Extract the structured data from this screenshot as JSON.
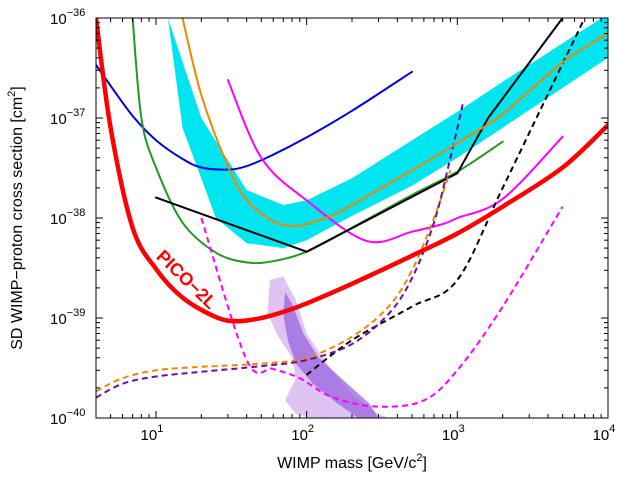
{
  "chart_data": {
    "type": "line",
    "xlabel": "WIMP mass [GeV/c²]",
    "ylabel": "SD WIMP−proton cross section [cm²]",
    "xscale": "log",
    "yscale": "log",
    "xlim": [
      4,
      10000
    ],
    "ylim": [
      1e-40,
      1e-36
    ],
    "grid": false,
    "x_ticks": [
      {
        "value": 10,
        "base": "10",
        "exp": "1"
      },
      {
        "value": 100,
        "base": "10",
        "exp": "2"
      },
      {
        "value": 1000,
        "base": "10",
        "exp": "3"
      },
      {
        "value": 10000,
        "base": "10",
        "exp": "4"
      }
    ],
    "y_ticks": [
      {
        "value": 1e-40,
        "base": "10",
        "exp": "−40"
      },
      {
        "value": 1e-39,
        "base": "10",
        "exp": "−39"
      },
      {
        "value": 1e-38,
        "base": "10",
        "exp": "−38"
      },
      {
        "value": 1e-37,
        "base": "10",
        "exp": "−37"
      },
      {
        "value": 1e-36,
        "base": "10",
        "exp": "−36"
      }
    ],
    "annotations": [
      {
        "text": "PICO−2L",
        "x": 15,
        "y": 2.2e-39,
        "color": "#ff0000",
        "rotation": 44
      }
    ],
    "regions": [
      {
        "color": "#d9b8f2",
        "opacity": 0.85,
        "points": [
          [
            57,
            2.4e-39
          ],
          [
            70,
            2.6e-39
          ],
          [
            85,
            1.5e-39
          ],
          [
            100,
            7e-40
          ],
          [
            140,
            3.3e-40
          ],
          [
            200,
            1.7e-40
          ],
          [
            300,
            1.1e-40
          ],
          [
            420,
            9e-41
          ],
          [
            330,
            8.5e-41
          ],
          [
            200,
            9e-41
          ],
          [
            120,
            9.5e-41
          ],
          [
            85,
            1.1e-40
          ],
          [
            72,
            1.5e-40
          ],
          [
            85,
            2.5e-40
          ],
          [
            80,
            4e-40
          ],
          [
            65,
            6.5e-40
          ],
          [
            55,
            1.1e-39
          ]
        ]
      },
      {
        "color": "#9966dd",
        "opacity": 0.75,
        "points": [
          [
            72,
            1.8e-39
          ],
          [
            80,
            1.4e-39
          ],
          [
            95,
            7e-40
          ],
          [
            120,
            4e-40
          ],
          [
            180,
            2.3e-40
          ],
          [
            260,
            1.4e-40
          ],
          [
            300,
            1e-40
          ],
          [
            220,
            1e-40
          ],
          [
            160,
            1.4e-40
          ],
          [
            110,
            2.2e-40
          ],
          [
            85,
            3.5e-40
          ],
          [
            75,
            6e-40
          ],
          [
            70,
            1.1e-39
          ]
        ]
      }
    ],
    "bands": [
      {
        "color": "#00e5f0",
        "upper": [
          [
            12,
            1e-36
          ],
          [
            20,
            1e-37
          ],
          [
            40,
            1.9e-38
          ],
          [
            70,
            1.35e-38
          ],
          [
            100,
            1.5e-38
          ],
          [
            200,
            2.5e-38
          ],
          [
            500,
            6e-38
          ],
          [
            1000,
            1.15e-37
          ],
          [
            2000,
            2.3e-37
          ],
          [
            5000,
            5.6e-37
          ],
          [
            10000,
            1.1e-36
          ]
        ],
        "lower": [
          [
            10000,
            4e-37
          ],
          [
            5000,
            2e-37
          ],
          [
            2000,
            8e-38
          ],
          [
            1000,
            4e-38
          ],
          [
            500,
            2.1e-38
          ],
          [
            200,
            1.05e-38
          ],
          [
            100,
            6e-39
          ],
          [
            70,
            5e-39
          ],
          [
            40,
            5.6e-39
          ],
          [
            25,
            1e-38
          ],
          [
            15,
            8e-38
          ],
          [
            12,
            1e-36
          ]
        ]
      }
    ],
    "series": [
      {
        "color": "#ff0000",
        "width": 4.5,
        "dash": "",
        "points": [
          [
            4,
            1e-36
          ],
          [
            5,
            8e-38
          ],
          [
            7,
            8e-39
          ],
          [
            10,
            3.1e-39
          ],
          [
            15,
            1.6e-39
          ],
          [
            25,
            1.02e-39
          ],
          [
            35,
            9.3e-40
          ],
          [
            50,
            1e-39
          ],
          [
            70,
            1.15e-39
          ],
          [
            100,
            1.4e-39
          ],
          [
            200,
            2.2e-39
          ],
          [
            500,
            4.2e-39
          ],
          [
            1000,
            7e-39
          ],
          [
            2000,
            1.3e-38
          ],
          [
            5000,
            3.2e-38
          ],
          [
            10000,
            8.5e-38
          ]
        ]
      },
      {
        "color": "#0000dd",
        "width": 2,
        "dash": "",
        "points": [
          [
            4,
            3.4e-37
          ],
          [
            5,
            2.1e-37
          ],
          [
            7,
            1.05e-37
          ],
          [
            10,
            6e-38
          ],
          [
            15,
            3.9e-38
          ],
          [
            20,
            3.2e-38
          ],
          [
            30,
            3.05e-38
          ],
          [
            40,
            3.3e-38
          ],
          [
            60,
            4.3e-38
          ],
          [
            100,
            6.4e-38
          ],
          [
            200,
            1.18e-37
          ],
          [
            500,
            2.9e-37
          ]
        ]
      },
      {
        "color": "#229922",
        "width": 2,
        "dash": "",
        "points": [
          [
            7,
            1e-36
          ],
          [
            8,
            1e-37
          ],
          [
            10,
            3.2e-38
          ],
          [
            15,
            9e-39
          ],
          [
            25,
            4.5e-39
          ],
          [
            40,
            3.6e-39
          ],
          [
            60,
            3.7e-39
          ],
          [
            100,
            4.6e-39
          ],
          [
            200,
            8e-39
          ],
          [
            500,
            1.7e-38
          ],
          [
            1000,
            2.9e-38
          ],
          [
            2000,
            5.8e-38
          ]
        ]
      },
      {
        "color": "#ee8800",
        "width": 2,
        "dash": "",
        "points": [
          [
            15,
            1e-36
          ],
          [
            20,
            1.7e-37
          ],
          [
            30,
            3.3e-38
          ],
          [
            40,
            1.5e-38
          ],
          [
            60,
            9.3e-39
          ],
          [
            80,
            8.3e-39
          ],
          [
            100,
            8.7e-39
          ],
          [
            150,
            1.07e-38
          ],
          [
            200,
            1.35e-38
          ],
          [
            500,
            3e-38
          ],
          [
            1000,
            5.6e-38
          ],
          [
            2000,
            1.1e-37
          ],
          [
            5000,
            3.6e-37
          ],
          [
            10000,
            7e-37
          ]
        ]
      },
      {
        "color": "#ff00ff",
        "width": 2,
        "dash": "",
        "points": [
          [
            30,
            2.4e-37
          ],
          [
            50,
            4e-38
          ],
          [
            100,
            1.5e-38
          ],
          [
            250,
            5.9e-39
          ],
          [
            500,
            7.3e-39
          ],
          [
            800,
            8.7e-39
          ],
          [
            1000,
            1e-38
          ],
          [
            2000,
            1.55e-38
          ],
          [
            5000,
            6.5e-38
          ]
        ]
      },
      {
        "color": "#000000",
        "width": 2,
        "dash": "",
        "points": [
          [
            10,
            1.6e-38
          ],
          [
            100,
            4.6e-39
          ],
          [
            1000,
            2.8e-38
          ],
          [
            1600,
            1e-37
          ],
          [
            5000,
            1e-36
          ]
        ]
      },
      {
        "color": "#000000",
        "width": 2,
        "dash": "6,4",
        "points": [
          [
            100,
            2.7e-40
          ],
          [
            200,
            6e-40
          ],
          [
            500,
            1.3e-39
          ],
          [
            1000,
            2.4e-39
          ],
          [
            2000,
            2e-38
          ],
          [
            5000,
            3.5e-37
          ],
          [
            7000,
            1e-36
          ]
        ]
      },
      {
        "color": "#ff00ff",
        "width": 2,
        "dash": "6,4",
        "points": [
          [
            20,
            1e-38
          ],
          [
            40,
            3.8e-40
          ],
          [
            60,
            3.1e-40
          ],
          [
            90,
            2.5e-40
          ],
          [
            150,
            1.6e-40
          ],
          [
            300,
            1.3e-40
          ],
          [
            600,
            1.5e-40
          ],
          [
            1000,
            3e-40
          ],
          [
            2000,
            1.3e-39
          ],
          [
            5000,
            1.3e-38
          ]
        ]
      },
      {
        "color": "#ee8800",
        "width": 2,
        "dash": "6,4",
        "points": [
          [
            4,
            1.85e-40
          ],
          [
            6,
            2.5e-40
          ],
          [
            10,
            3e-40
          ],
          [
            20,
            3.25e-40
          ],
          [
            50,
            3.5e-40
          ],
          [
            100,
            4e-40
          ],
          [
            200,
            6.5e-40
          ],
          [
            350,
            1.3e-39
          ],
          [
            500,
            3e-39
          ],
          [
            700,
            1e-38
          ],
          [
            900,
            3e-38
          ]
        ]
      },
      {
        "color": "#661199",
        "width": 2,
        "dash": "6,4",
        "points": [
          [
            4,
            1.6e-40
          ],
          [
            6,
            2.2e-40
          ],
          [
            10,
            2.6e-40
          ],
          [
            20,
            2.9e-40
          ],
          [
            50,
            3.3e-40
          ],
          [
            100,
            3.8e-40
          ],
          [
            200,
            5.5e-40
          ],
          [
            350,
            1.1e-39
          ],
          [
            500,
            2.5e-39
          ],
          [
            700,
            9e-39
          ],
          [
            900,
            4e-38
          ],
          [
            1100,
            1.5e-37
          ]
        ]
      }
    ]
  }
}
